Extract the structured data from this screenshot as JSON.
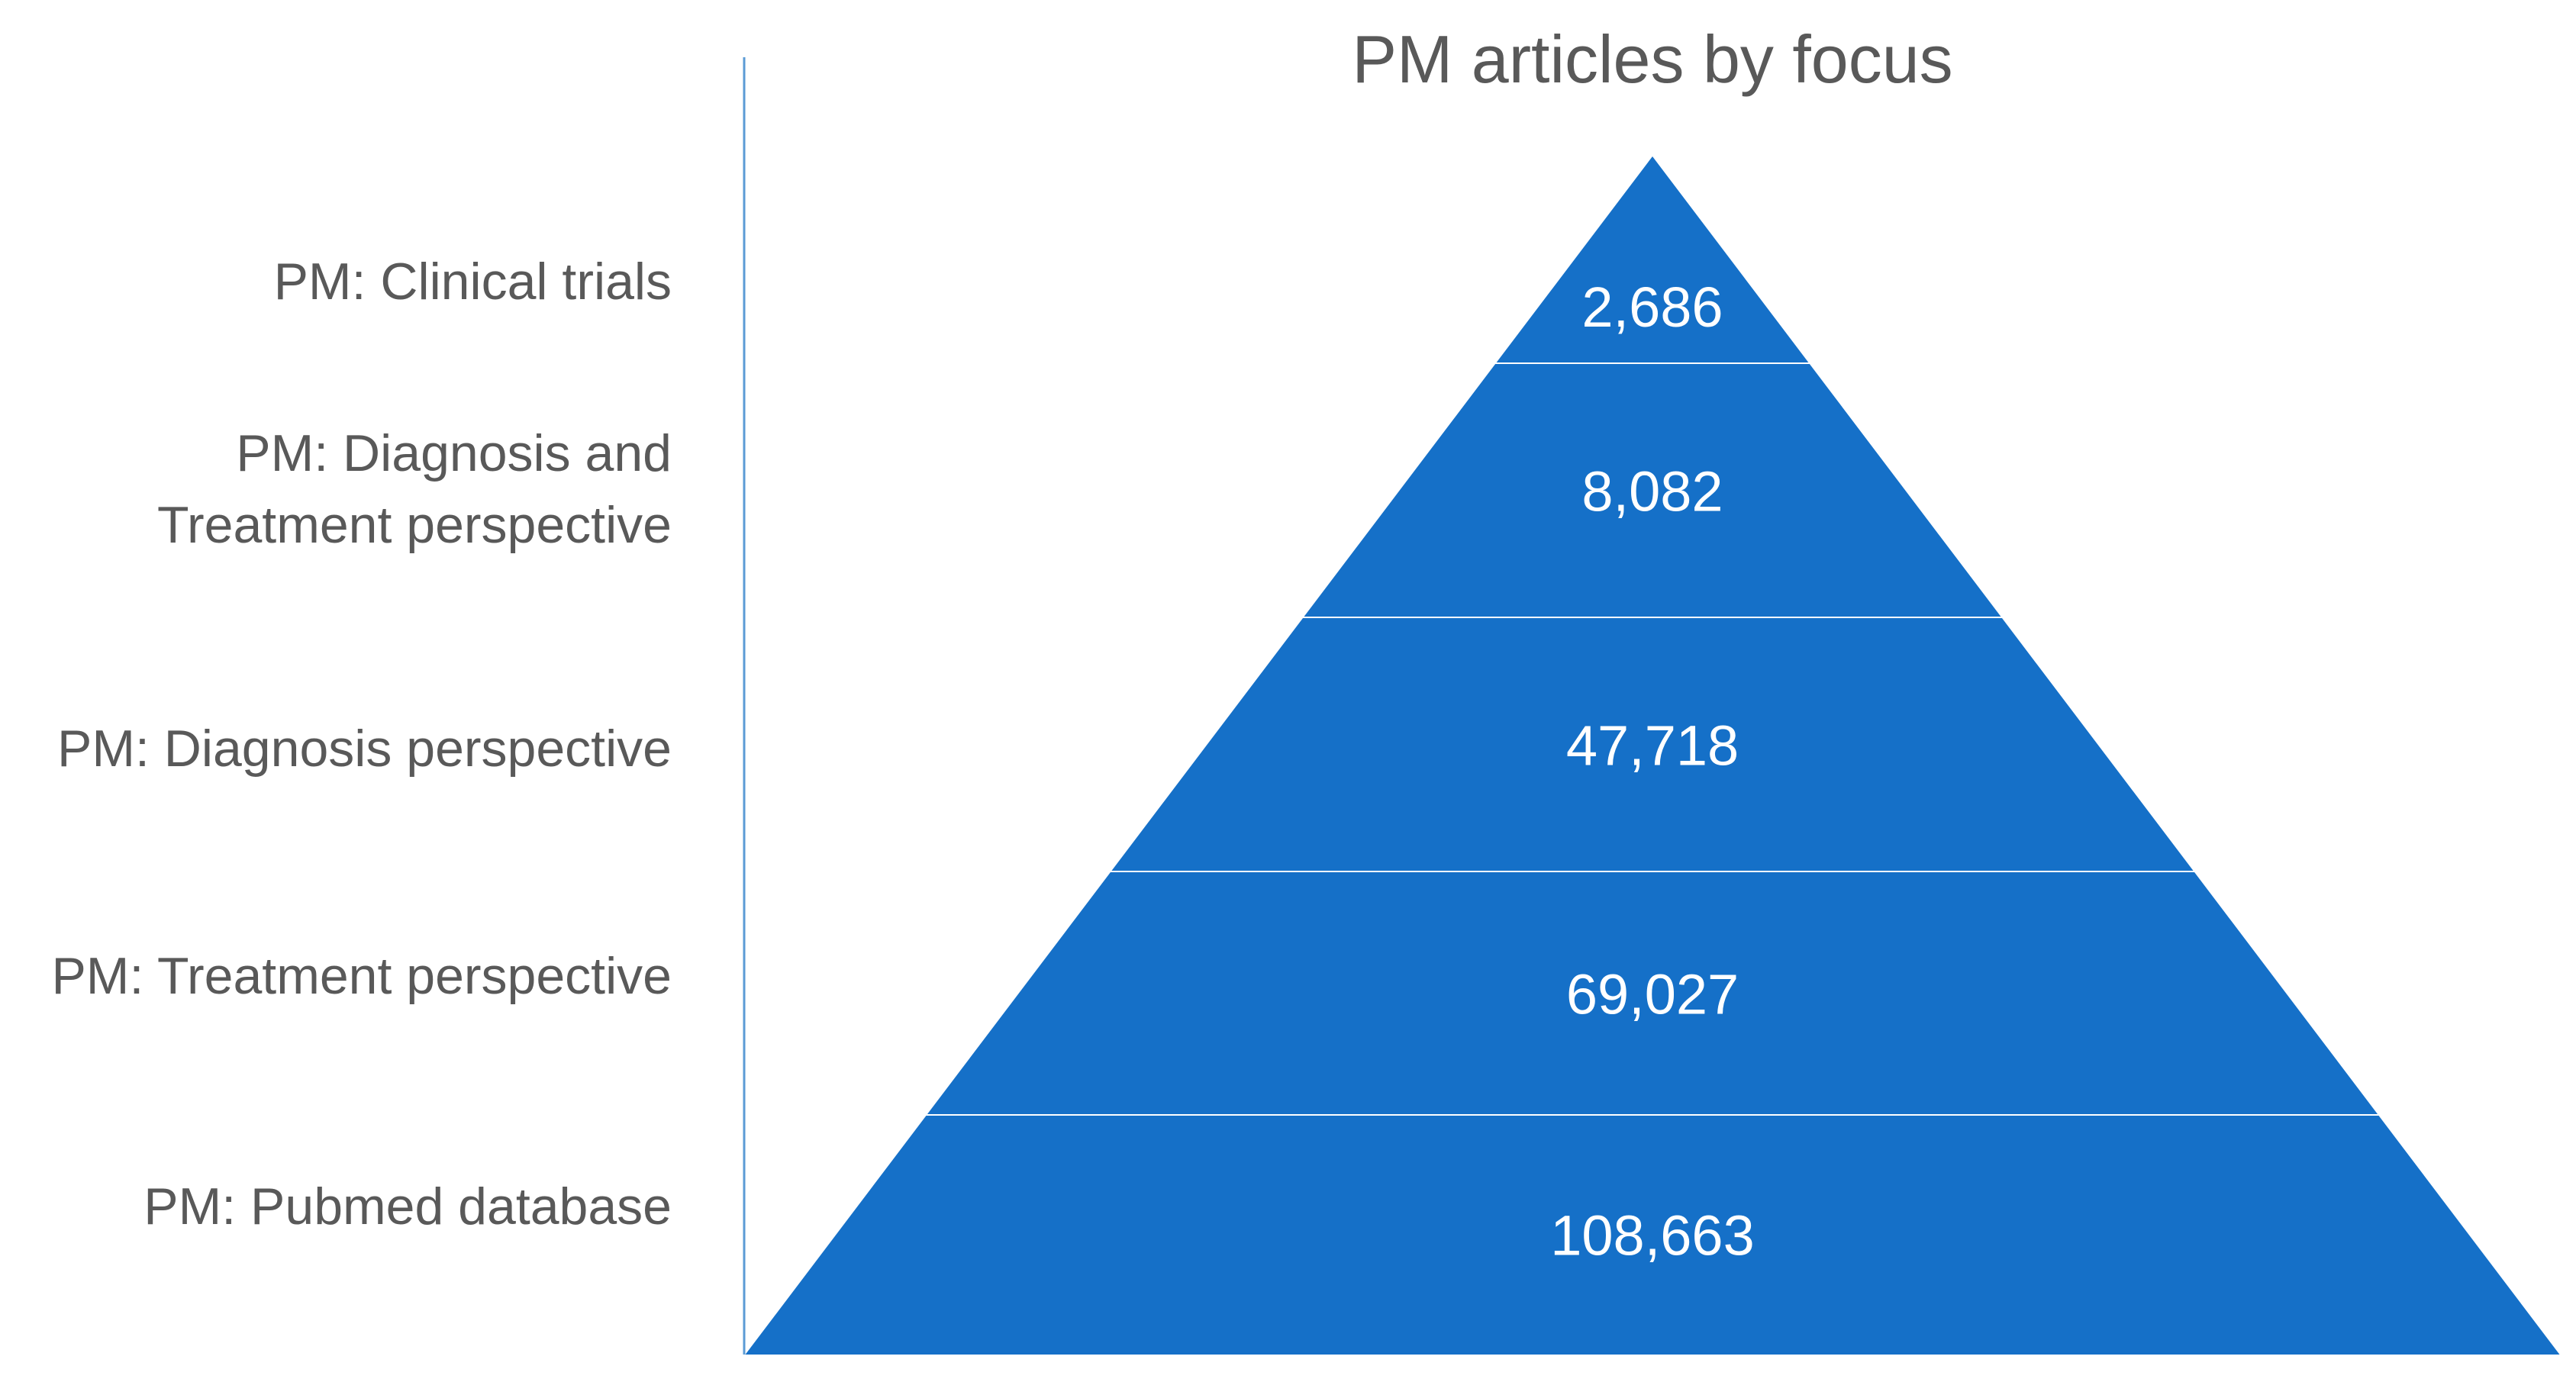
{
  "chart_data": {
    "type": "bar",
    "title": "PM articles by focus",
    "orientation": "pyramid",
    "categories": [
      "PM: Clinical trials",
      "PM: Diagnosis and Treatment perspective",
      "PM: Diagnosis perspective",
      "PM: Treatment perspective",
      "PM: Pubmed database"
    ],
    "category_lines": [
      [
        "PM: Clinical trials"
      ],
      [
        "PM: Diagnosis and",
        "Treatment perspective"
      ],
      [
        "PM: Diagnosis perspective"
      ],
      [
        "PM: Treatment perspective"
      ],
      [
        "PM: Pubmed database"
      ]
    ],
    "values": [
      2686,
      8082,
      47718,
      69027,
      108663
    ],
    "value_labels": [
      "2,686",
      "8,082",
      "47,718",
      "69,027",
      "108,663"
    ],
    "xlabel": "",
    "ylabel": "",
    "grid": false,
    "colors": {
      "fill": "#1570C8",
      "separator": "#ffffff",
      "axis": "#5B9BD5",
      "text": "#595959",
      "value_text": "#ffffff"
    }
  }
}
